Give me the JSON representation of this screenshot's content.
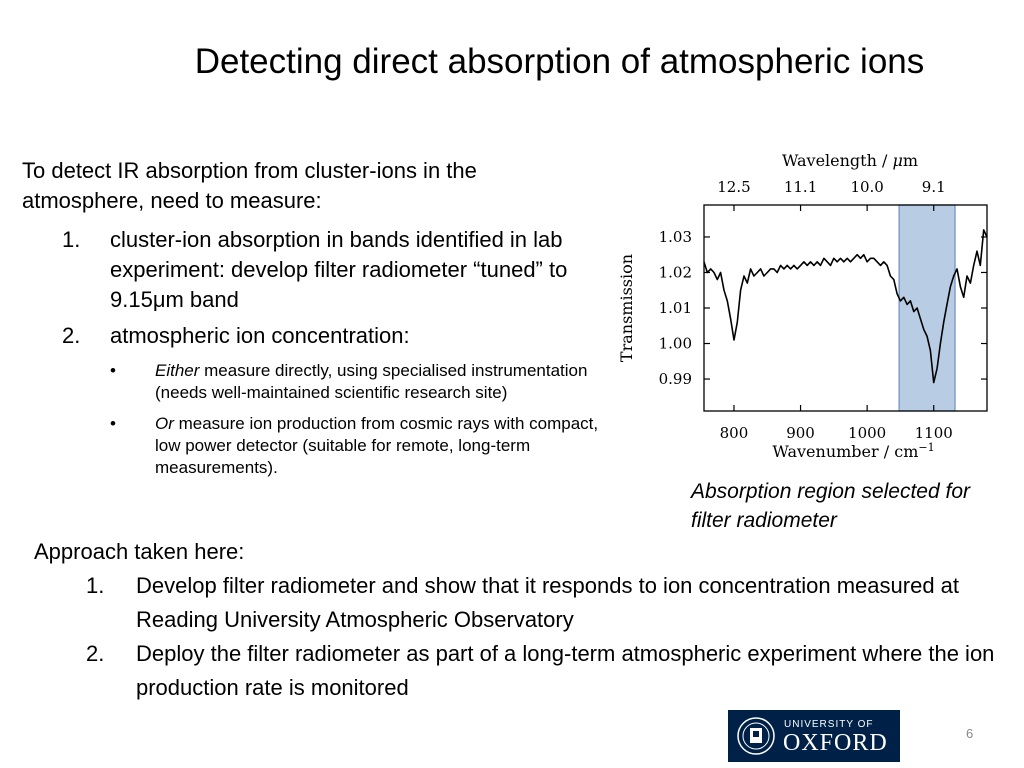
{
  "slide": {
    "title": "Detecting direct absorption of atmospheric ions",
    "intro": "To detect IR absorption from cluster-ions in the atmosphere, need to measure:",
    "items": [
      {
        "num": "1.",
        "text": "cluster-ion absorption in bands identified in lab experiment: develop filter radiometer “tuned” to 9.15μm band"
      },
      {
        "num": "2.",
        "text": "atmospheric ion concentration:"
      }
    ],
    "bullets": [
      {
        "marker": "•",
        "lead": "Either",
        "text": " measure directly, using specialised instrumentation (needs well-maintained scientific research site)"
      },
      {
        "marker": "•",
        "lead": "Or",
        "text": " measure ion production from cosmic rays with compact, low power detector (suitable for remote, long-term measurements)."
      }
    ],
    "caption": "Absorption region selected for filter radiometer",
    "approach_title": "Approach taken here:",
    "approach_items": [
      {
        "num": "1.",
        "text": "Develop filter radiometer and show that it responds to ion concentration measured at Reading University Atmospheric Observatory"
      },
      {
        "num": "2.",
        "text": "Deploy the filter radiometer as part of a long-term atmospheric experiment where the ion production rate is monitored"
      }
    ],
    "page_number": "6"
  },
  "logo": {
    "line1": "UNIVERSITY OF",
    "line2": "OXFORD",
    "color": "#002147"
  },
  "chart_data": {
    "type": "line",
    "title": "",
    "xlabel": "Wavenumber / cm",
    "xlabel_sup": "−1",
    "ylabel": "Transmission",
    "top_axis_label": "Wavelength / ",
    "top_axis_label_mu": "μ",
    "top_axis_label_unit": "m",
    "xlim": [
      755,
      1180
    ],
    "ylim": [
      0.981,
      1.039
    ],
    "x_ticks": [
      800,
      900,
      1000,
      1100
    ],
    "x_tick_labels": [
      "800",
      "900",
      "1000",
      "1100"
    ],
    "y_ticks": [
      0.99,
      1.0,
      1.01,
      1.02,
      1.03
    ],
    "y_tick_labels": [
      "0.99",
      "1.00",
      "1.01",
      "1.02",
      "1.03"
    ],
    "top_ticks": [
      800,
      900,
      1000,
      1100
    ],
    "top_tick_labels": [
      "12.5",
      "11.1",
      "10.0",
      "9.1"
    ],
    "highlight": {
      "x_range": [
        1048,
        1132
      ],
      "fill": "#b8cce4",
      "edge": "#6d8fc4"
    },
    "line_color": "#000000",
    "series": [
      {
        "x": [
          755,
          760,
          765,
          770,
          775,
          780,
          785,
          790,
          795,
          800,
          805,
          810,
          815,
          820,
          825,
          830,
          835,
          840,
          845,
          850,
          855,
          860,
          865,
          870,
          875,
          880,
          885,
          890,
          895,
          900,
          905,
          910,
          915,
          920,
          925,
          930,
          935,
          940,
          945,
          950,
          955,
          960,
          965,
          970,
          975,
          980,
          985,
          990,
          995,
          1000,
          1005,
          1010,
          1015,
          1020,
          1025,
          1030,
          1035,
          1040,
          1045,
          1050,
          1055,
          1060,
          1065,
          1070,
          1075,
          1080,
          1085,
          1090,
          1095,
          1100,
          1105,
          1110,
          1115,
          1120,
          1125,
          1130,
          1135,
          1140,
          1145,
          1150,
          1155,
          1160,
          1165,
          1170,
          1175,
          1180
        ],
        "y": [
          1.023,
          1.02,
          1.021,
          1.02,
          1.018,
          1.02,
          1.015,
          1.012,
          1.007,
          1.001,
          1.006,
          1.015,
          1.019,
          1.017,
          1.021,
          1.019,
          1.02,
          1.021,
          1.019,
          1.02,
          1.021,
          1.021,
          1.02,
          1.022,
          1.021,
          1.022,
          1.021,
          1.022,
          1.021,
          1.022,
          1.023,
          1.022,
          1.023,
          1.022,
          1.023,
          1.022,
          1.024,
          1.023,
          1.022,
          1.024,
          1.023,
          1.024,
          1.023,
          1.024,
          1.023,
          1.024,
          1.025,
          1.024,
          1.025,
          1.023,
          1.024,
          1.024,
          1.023,
          1.022,
          1.023,
          1.022,
          1.019,
          1.018,
          1.014,
          1.012,
          1.013,
          1.011,
          1.012,
          1.009,
          1.01,
          1.007,
          1.004,
          1.002,
          0.998,
          0.989,
          0.993,
          1.0,
          1.006,
          1.011,
          1.016,
          1.019,
          1.021,
          1.016,
          1.013,
          1.019,
          1.017,
          1.022,
          1.026,
          1.022,
          1.032,
          1.03
        ]
      }
    ]
  }
}
